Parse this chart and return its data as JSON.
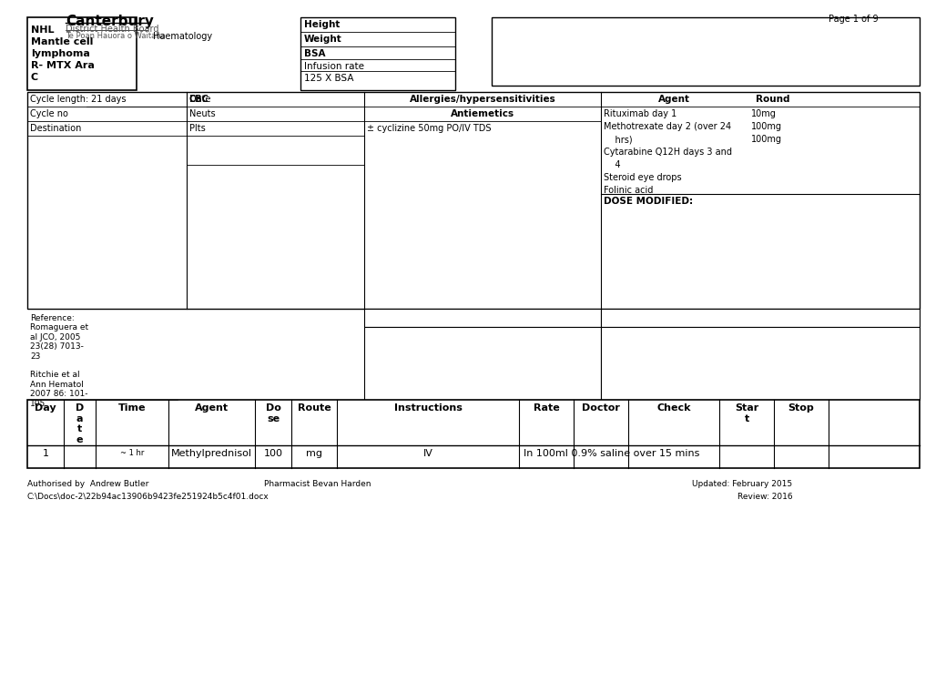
{
  "title": "NHL Mantle Cell R MTX Cytarabine",
  "header_title": "Canterbury",
  "header_subtitle": "District Health Board",
  "header_subtitle2": "Te Poan Hauora o Waitaha",
  "header_dept": "Haematology",
  "page_info": "Page 1 of 9",
  "drug_name_lines": [
    "NHL",
    "Mantle cell",
    "lymphoma",
    "R- MTX Ara",
    "C"
  ],
  "height_label": "Height",
  "weight_label": "Weight",
  "bsa_label": "BSA",
  "infusion_rate_label": "Infusion rate",
  "infusion_rate_value": "125 X BSA",
  "cycle_length_label": "Cycle length:",
  "cycle_length_value": "21 days",
  "cycle_no_label": "Cycle no",
  "destination_label": "Destination",
  "cbc_label": "CBC",
  "date_label": "Date",
  "neuts_label": "Neuts",
  "plts_label": "Plts",
  "allergies_label": "Allergies/hypersensitivities",
  "antiemetics_label": "Antiemetics",
  "antiemetics_value": "± cyclizine 50mg PO/IV TDS",
  "agent_label": "Agent",
  "round_label": "Round",
  "agents": [
    {
      "name": "Rituximab day 1",
      "round": "10mg"
    },
    {
      "name": "Methotrexate day 2 (over 24\n    hrs)",
      "round": "100mg"
    },
    {
      "name": "",
      "round": "100mg"
    },
    {
      "name": "Cytarabine Q12H days 3 and\n    4",
      "round": ""
    },
    {
      "name": "Steroid eye drops",
      "round": ""
    },
    {
      "name": "Folinic acid",
      "round": ""
    }
  ],
  "dose_modified_label": "DOSE MODIFIED:",
  "reference_text": "Reference:\nRomaguera et\nal JCO, 2005\n23(28) 7013-\n23\n\nRitchie et al\nAnn Hematol\n2007 86: 101-\n105",
  "table_headers": [
    "Day",
    "D\na\nt\ne",
    "Time",
    "Agent",
    "Do\nse",
    "Route",
    "Instructions",
    "Rate",
    "Doctor",
    "Check",
    "Star\nt",
    "Stop"
  ],
  "table_row1_day": "1",
  "table_row1_time": "~ 1 hr",
  "table_row1_agent": "Methylprednisol",
  "table_row1_dose": "100",
  "table_row1_route_unit": "mg",
  "table_row1_route": "IV",
  "table_row1_instructions": "In 100ml 0.9% saline over 15 mins",
  "footer_auth": "Authorised by  Andrew Butler",
  "footer_pharm": "Pharmacist Bevan Harden",
  "footer_updated": "Updated: February 2015",
  "footer_review": "Review: 2016",
  "footer_filepath": "C:\\Docs\\doc-2\\22b94ac13906b9423fe251924b5c4f01.docx"
}
